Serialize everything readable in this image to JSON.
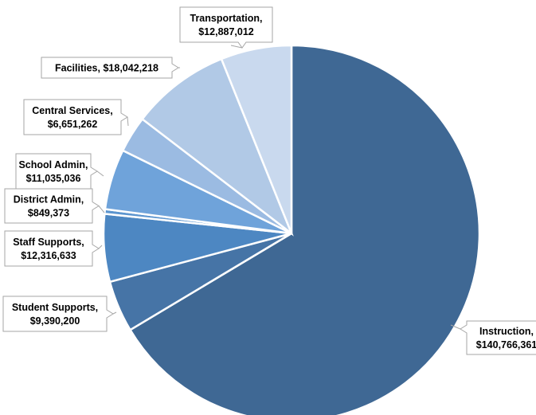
{
  "chart_data": {
    "type": "pie",
    "title": "",
    "start_angle_deg": 0,
    "direction": "clockwise",
    "slices": [
      {
        "name": "Instruction",
        "label": "Instruction,",
        "value_label": "$140,766,361",
        "value": 140766361,
        "color": "#3f6894"
      },
      {
        "name": "Student Supports",
        "label": "Student Supports,",
        "value_label": "$9,390,200",
        "value": 9390200,
        "color": "#4674a6"
      },
      {
        "name": "Staff Supports",
        "label": "Staff Supports,",
        "value_label": "$12,316,633",
        "value": 12316633,
        "color": "#4d87c2"
      },
      {
        "name": "District Admin",
        "label": "District Admin,",
        "value_label": "$849,373",
        "value": 849373,
        "color": "#5c95cf"
      },
      {
        "name": "School Admin",
        "label": "School Admin,",
        "value_label": "$11,035,036",
        "value": 11035036,
        "color": "#6fa3da"
      },
      {
        "name": "Central Services",
        "label": "Central Services,",
        "value_label": "$6,651,262",
        "value": 6651262,
        "color": "#9bbbe2"
      },
      {
        "name": "Facilities",
        "label": "Facilities, $18,042,218",
        "value_label": "",
        "value": 18042218,
        "color": "#b1c9e6"
      },
      {
        "name": "Transportation",
        "label": "Transportation,",
        "value_label": "$12,887,012",
        "value": 12887012,
        "color": "#c9d9ee"
      }
    ]
  }
}
